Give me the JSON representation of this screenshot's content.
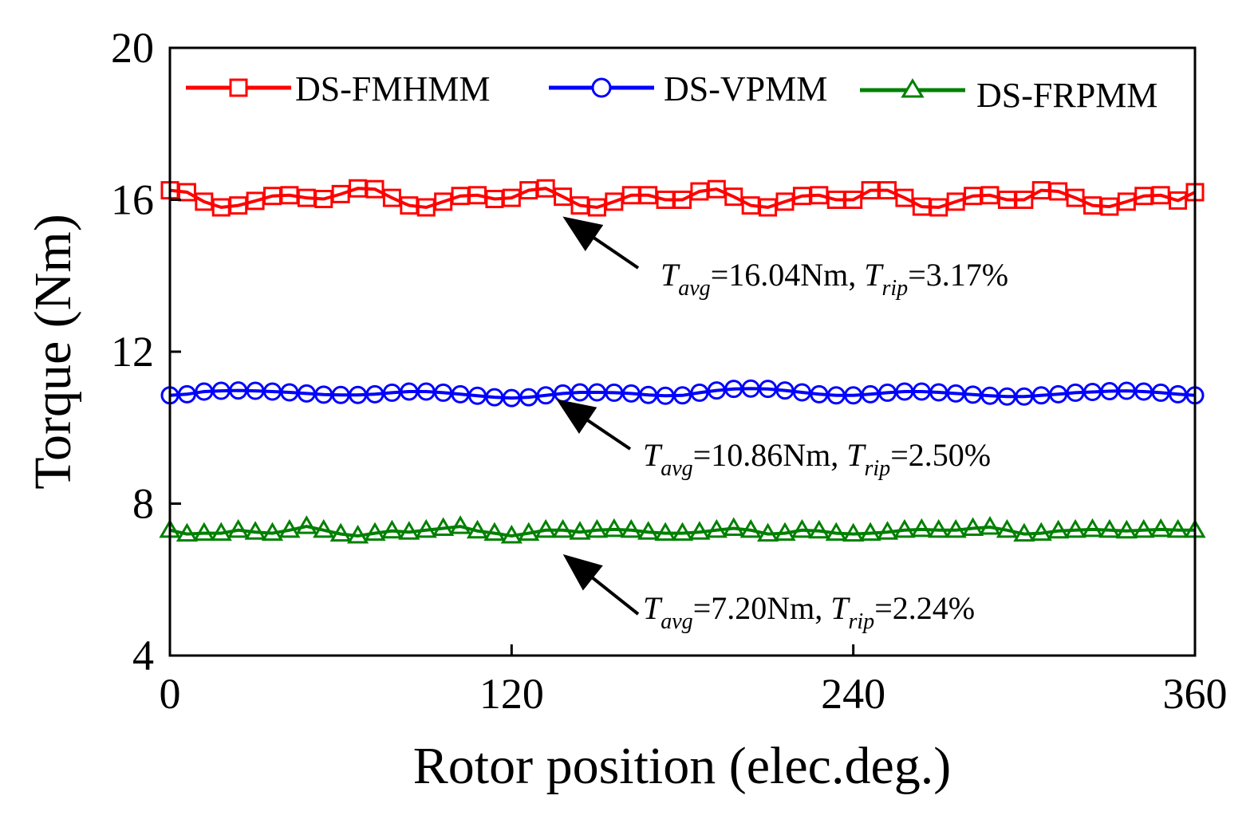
{
  "chart_data": {
    "type": "line",
    "xlabel": "Rotor position (elec.deg.)",
    "ylabel": "Torque (Nm)",
    "xlim": [
      0,
      360
    ],
    "ylim": [
      4,
      20
    ],
    "xticks": [
      0,
      120,
      240,
      360
    ],
    "xtick_labels": [
      "0",
      "120",
      "240",
      "360"
    ],
    "yticks": [
      4,
      8,
      12,
      16,
      20
    ],
    "ytick_labels": [
      "4",
      "8",
      "12",
      "16",
      "20"
    ],
    "legend_position": "top",
    "x": [
      0,
      6,
      12,
      18,
      24,
      30,
      36,
      42,
      48,
      54,
      60,
      66,
      72,
      78,
      84,
      90,
      96,
      102,
      108,
      114,
      120,
      126,
      132,
      138,
      144,
      150,
      156,
      162,
      168,
      174,
      180,
      186,
      192,
      198,
      204,
      210,
      216,
      222,
      228,
      234,
      240,
      246,
      252,
      258,
      264,
      270,
      276,
      282,
      288,
      294,
      300,
      306,
      312,
      318,
      324,
      330,
      336,
      342,
      348,
      354,
      360
    ],
    "series": [
      {
        "name": "DS-FMHMM",
        "color": "#ff0000",
        "marker": "square",
        "values": [
          16.25,
          16.2,
          15.95,
          15.8,
          15.85,
          15.97,
          16.1,
          16.12,
          16.05,
          16.02,
          16.15,
          16.3,
          16.28,
          16.05,
          15.85,
          15.8,
          15.95,
          16.1,
          16.12,
          16.02,
          16.05,
          16.25,
          16.3,
          16.08,
          15.85,
          15.8,
          15.95,
          16.12,
          16.12,
          16.0,
          16.0,
          16.22,
          16.28,
          16.08,
          15.85,
          15.8,
          15.95,
          16.1,
          16.12,
          16.0,
          16.0,
          16.25,
          16.25,
          16.05,
          15.82,
          15.8,
          15.95,
          16.1,
          16.12,
          16.0,
          16.0,
          16.25,
          16.22,
          16.05,
          15.85,
          15.82,
          15.95,
          16.1,
          16.12,
          15.98,
          16.2
        ]
      },
      {
        "name": "DS-VPMM",
        "color": "#0000ff",
        "marker": "circle",
        "values": [
          10.85,
          10.88,
          10.95,
          10.97,
          10.98,
          10.97,
          10.95,
          10.93,
          10.9,
          10.87,
          10.86,
          10.86,
          10.88,
          10.92,
          10.95,
          10.95,
          10.92,
          10.88,
          10.84,
          10.8,
          10.78,
          10.8,
          10.85,
          10.9,
          10.93,
          10.93,
          10.92,
          10.9,
          10.86,
          10.84,
          10.85,
          10.92,
          10.98,
          11.02,
          11.03,
          11.02,
          10.98,
          10.93,
          10.88,
          10.85,
          10.85,
          10.88,
          10.92,
          10.95,
          10.95,
          10.93,
          10.9,
          10.87,
          10.84,
          10.82,
          10.82,
          10.85,
          10.88,
          10.92,
          10.94,
          10.96,
          10.97,
          10.95,
          10.92,
          10.88,
          10.85
        ]
      },
      {
        "name": "DS-FRPMM",
        "color": "#008000",
        "marker": "triangle",
        "values": [
          7.3,
          7.2,
          7.22,
          7.22,
          7.3,
          7.25,
          7.22,
          7.3,
          7.4,
          7.3,
          7.2,
          7.15,
          7.22,
          7.28,
          7.25,
          7.3,
          7.35,
          7.4,
          7.28,
          7.22,
          7.15,
          7.22,
          7.3,
          7.3,
          7.25,
          7.3,
          7.32,
          7.3,
          7.25,
          7.22,
          7.22,
          7.25,
          7.3,
          7.35,
          7.3,
          7.2,
          7.22,
          7.3,
          7.28,
          7.22,
          7.2,
          7.22,
          7.25,
          7.3,
          7.32,
          7.3,
          7.3,
          7.35,
          7.38,
          7.3,
          7.2,
          7.22,
          7.28,
          7.3,
          7.32,
          7.3,
          7.28,
          7.3,
          7.32,
          7.3,
          7.3
        ]
      }
    ],
    "annotations": [
      {
        "series": "DS-FMHMM",
        "avg_label": "T",
        "avg_sub": "avg",
        "avg_value": "=16.04Nm, ",
        "rip_label": "T",
        "rip_sub": "rip",
        "rip_value": "=3.17%",
        "point_x": 138,
        "point_y": 15.85
      },
      {
        "series": "DS-VPMM",
        "avg_label": "T",
        "avg_sub": "avg",
        "avg_value": "=10.86Nm, ",
        "rip_label": "T",
        "rip_sub": "rip",
        "rip_value": "=2.50%",
        "point_x": 137,
        "point_y": 10.88
      },
      {
        "series": "DS-FRPMM",
        "avg_label": "T",
        "avg_sub": "avg",
        "avg_value": "=7.20Nm, ",
        "rip_label": "T",
        "rip_sub": "rip",
        "rip_value": "=2.24%",
        "point_x": 137,
        "point_y": 7.1
      }
    ]
  }
}
